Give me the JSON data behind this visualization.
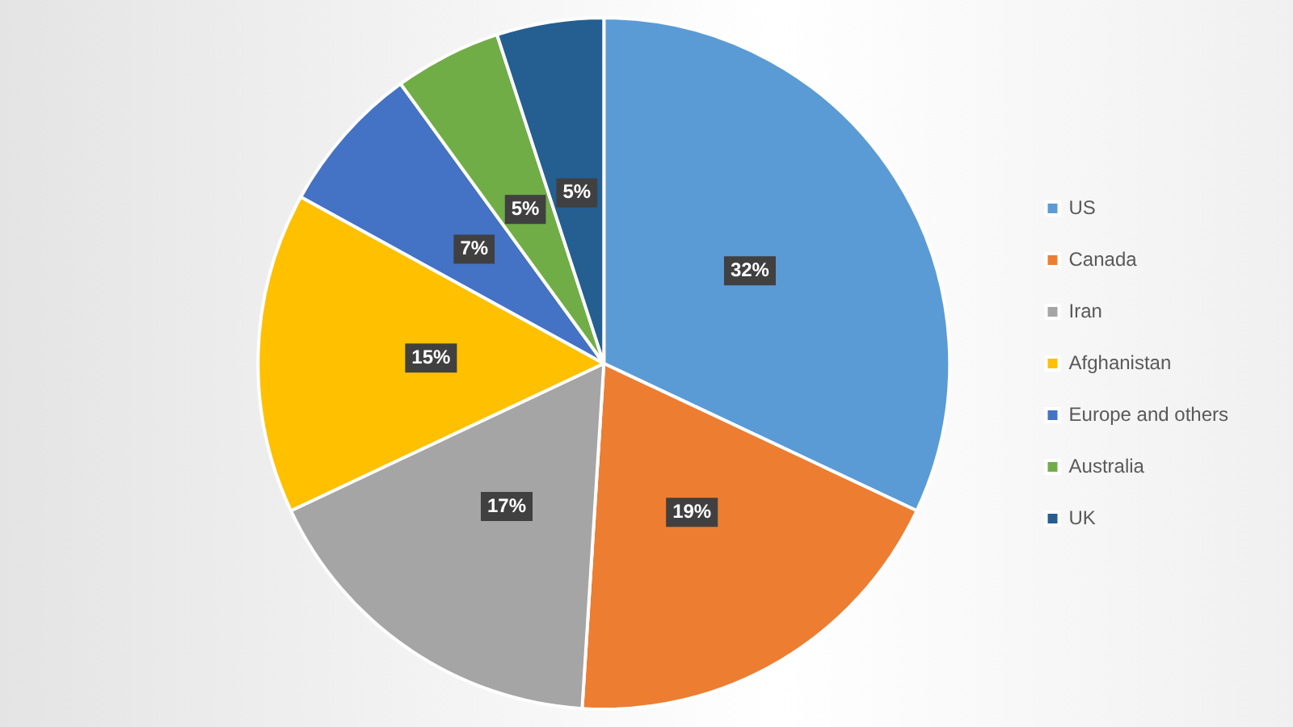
{
  "chart_data": {
    "type": "pie",
    "categories": [
      "US",
      "Canada",
      "Iran",
      "Afghanistan",
      "Europe and others",
      "Australia",
      "UK"
    ],
    "values": [
      32,
      19,
      17,
      15,
      7,
      5,
      5
    ],
    "colors": [
      "#5b9bd5",
      "#ed7d31",
      "#a5a5a5",
      "#ffc000",
      "#4472c4",
      "#70ad47",
      "#255e91"
    ],
    "value_labels": [
      "32%",
      "19%",
      "17%",
      "15%",
      "7%",
      "5%",
      "5%"
    ],
    "legend": "right"
  }
}
